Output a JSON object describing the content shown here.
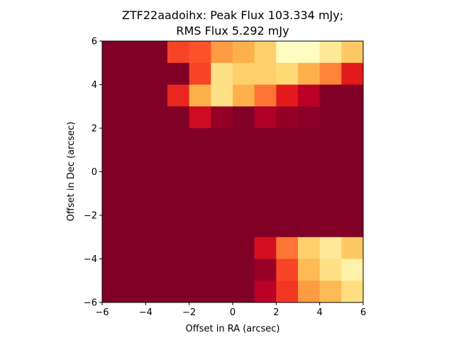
{
  "chart_data": {
    "type": "heatmap",
    "title": "ZTF22aadoihx: Peak Flux 103.334 mJy;\nRMS Flux 5.292 mJy",
    "title_lines": [
      "ZTF22aadoihx: Peak Flux 103.334 mJy;",
      "RMS Flux 5.292 mJy"
    ],
    "xlabel": "Offset in RA (arcsec)",
    "ylabel": "Offset in Dec (arcsec)",
    "xlim": [
      -6,
      6
    ],
    "ylim": [
      -6,
      6
    ],
    "x_ticks": [
      -6,
      -4,
      -2,
      0,
      2,
      4,
      6
    ],
    "y_ticks": [
      -6,
      -4,
      -2,
      0,
      2,
      4,
      6
    ],
    "x_tick_labels": [
      "−6",
      "−4",
      "−2",
      "0",
      "2",
      "4",
      "6"
    ],
    "y_tick_labels": [
      "−6",
      "−4",
      "−2",
      "0",
      "2",
      "4",
      "6"
    ],
    "colormap": "YlOrRd_r",
    "pixel_size_arcsec": 1,
    "grid": false,
    "values_note_rows_top_to_bottom_dec_5_to_-5": true,
    "values": [
      [
        0.0,
        0.0,
        0.0,
        0.35,
        0.38,
        0.55,
        0.62,
        0.72,
        0.97,
        0.97,
        0.85,
        0.7
      ],
      [
        0.0,
        0.0,
        0.0,
        0.0,
        0.35,
        0.8,
        0.72,
        0.72,
        0.75,
        0.62,
        0.48,
        0.25
      ],
      [
        0.0,
        0.0,
        0.0,
        0.28,
        0.62,
        0.8,
        0.62,
        0.45,
        0.25,
        0.12,
        0.0,
        0.0
      ],
      [
        0.0,
        0.0,
        0.0,
        0.0,
        0.18,
        0.04,
        0.0,
        0.1,
        0.04,
        0.02,
        0.0,
        0.0
      ],
      [
        0.0,
        0.0,
        0.0,
        0.0,
        0.0,
        0.0,
        0.0,
        0.0,
        0.0,
        0.0,
        0.0,
        0.0
      ],
      [
        0.0,
        0.0,
        0.0,
        0.0,
        0.0,
        0.0,
        0.0,
        0.0,
        0.0,
        0.0,
        0.0,
        0.0
      ],
      [
        0.0,
        0.0,
        0.0,
        0.0,
        0.0,
        0.0,
        0.0,
        0.0,
        0.0,
        0.0,
        0.0,
        0.0
      ],
      [
        0.0,
        0.0,
        0.0,
        0.0,
        0.0,
        0.0,
        0.0,
        0.0,
        0.0,
        0.0,
        0.0,
        0.0
      ],
      [
        0.0,
        0.0,
        0.0,
        0.0,
        0.0,
        0.0,
        0.0,
        0.0,
        0.0,
        0.0,
        0.0,
        0.0
      ],
      [
        0.0,
        0.0,
        0.0,
        0.0,
        0.0,
        0.0,
        0.0,
        0.2,
        0.45,
        0.72,
        0.85,
        0.7
      ],
      [
        0.0,
        0.0,
        0.0,
        0.0,
        0.0,
        0.0,
        0.0,
        0.05,
        0.35,
        0.65,
        0.8,
        0.9
      ],
      [
        0.0,
        0.0,
        0.0,
        0.0,
        0.0,
        0.0,
        0.0,
        0.12,
        0.32,
        0.55,
        0.65,
        0.78
      ]
    ]
  }
}
